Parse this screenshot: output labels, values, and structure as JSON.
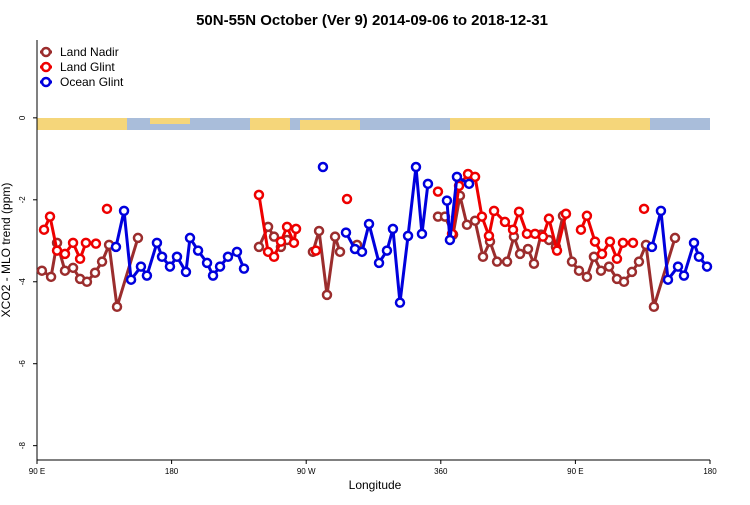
{
  "chart_data": {
    "type": "line",
    "title": "50N-55N October (Ver 9)   2014-09-06 to 2018-12-31",
    "xlabel": "Longitude",
    "ylabel": "XCO2 - MLO trend (ppm)",
    "xlim": [
      90,
      540
    ],
    "xticks": [
      {
        "value": 90,
        "label": "90 E"
      },
      180,
      {
        "value": 270,
        "label": "90 W"
      },
      360,
      {
        "value": 450,
        "label": "90 E"
      },
      {
        "value": 540,
        "label": "180"
      }
    ],
    "ylim": [
      -8.35,
      1.9
    ],
    "yticks": [
      0,
      -2,
      -4,
      -6,
      -8
    ],
    "legend": "top-left",
    "series": [
      {
        "name": "Land Nadir",
        "color": "#9b2d2d",
        "x": [
          93.3,
          99.4,
          103.4,
          108.7,
          114.1,
          118.8,
          123.4,
          128.8,
          133.5,
          138.2,
          143.5,
          157.5,
          null,
          238.4,
          244.5,
          248.5,
          253.1,
          257.2,
          null,
          274.5,
          278.6,
          283.9,
          289.3,
          292.6,
          null,
          304,
          null,
          358.1,
          362.8,
          368.2,
          372.8,
          377.5,
          382.9,
          388.2,
          392.9,
          397.6,
          404.3,
          408.9,
          413,
          418.3,
          422.3,
          427,
          432.3,
          437,
          441.7,
          447.7,
          452.4,
          457.7,
          462.4,
          467.1,
          472.5,
          477.8,
          482.5,
          487.8,
          492.5,
          497.2,
          502.5,
          516.6
        ],
        "values": [
          -3.73,
          -3.88,
          -3.05,
          -3.73,
          -3.66,
          -3.93,
          -4.0,
          -3.78,
          -3.51,
          -3.1,
          -4.61,
          -2.93,
          null,
          -3.15,
          -2.66,
          -2.9,
          -3.15,
          -2.98,
          null,
          -3.27,
          -2.76,
          -4.32,
          -2.9,
          -3.27,
          null,
          -3.1,
          null,
          -2.41,
          -2.41,
          -2.85,
          -1.9,
          -2.61,
          -2.51,
          -3.39,
          -3.02,
          -3.51,
          -3.51,
          -2.9,
          -3.32,
          -3.2,
          -3.56,
          -2.85,
          -2.98,
          -3.15,
          -2.39,
          -3.51,
          -3.73,
          -3.88,
          -3.39,
          -3.73,
          -3.63,
          -3.93,
          -4.0,
          -3.76,
          -3.51,
          -3.1,
          -4.61,
          -2.93
        ]
      },
      {
        "name": "Land Glint",
        "color": "#ee0000",
        "x": [
          94.7,
          98.7,
          103.4,
          108.7,
          114.1,
          118.8,
          122.7,
          129.4,
          null,
          136.8,
          null,
          238.4,
          244.5,
          248.5,
          253.1,
          257.2,
          261.8,
          263.2,
          null,
          276.5,
          null,
          297.3,
          null,
          358.1,
          null,
          367.5,
          372.2,
          378.2,
          382.9,
          387.5,
          392.2,
          395.6,
          402.9,
          408.3,
          412.3,
          417.6,
          423,
          428.3,
          432.3,
          437.7,
          443.7,
          null,
          453.7,
          457.7,
          463.1,
          467.8,
          473.1,
          477.8,
          481.8,
          488.5,
          null,
          495.9
        ],
        "values": [
          -2.73,
          -2.41,
          -3.24,
          -3.32,
          -3.05,
          -3.44,
          -3.05,
          -3.07,
          null,
          -2.22,
          null,
          -1.88,
          -3.27,
          -3.39,
          -3.02,
          -2.66,
          -3.05,
          -2.71,
          null,
          -3.24,
          null,
          -1.98,
          null,
          -1.8,
          null,
          -2.83,
          -1.66,
          -1.37,
          -1.44,
          -2.41,
          -2.88,
          -2.27,
          -2.54,
          -2.73,
          -2.29,
          -2.83,
          -2.83,
          -2.9,
          -2.46,
          -3.24,
          -2.34,
          null,
          -2.73,
          -2.39,
          -3.02,
          -3.32,
          -3.02,
          -3.44,
          -3.05,
          -3.05,
          null,
          -2.22
        ]
      },
      {
        "name": "Ocean Glint",
        "color": "#0000dd",
        "x": [
          142.8,
          148.2,
          152.9,
          159.5,
          163.5,
          170.2,
          173.6,
          178.9,
          183.6,
          189.6,
          192.3,
          197.7,
          203.7,
          207.7,
          212.4,
          217.7,
          223.7,
          228.4,
          null,
          281.2,
          null,
          296.6,
          302.6,
          307.3,
          312,
          318.7,
          324,
          328,
          332.7,
          338.1,
          343.4,
          347.4,
          351.4,
          null,
          364.1,
          366.1,
          370.8,
          378.9,
          null,
          501.2,
          507.2,
          511.9,
          518.6,
          522.6,
          529.3,
          532.6,
          538
        ],
        "values": [
          -3.15,
          -2.27,
          -3.95,
          -3.63,
          -3.85,
          -3.05,
          -3.39,
          -3.63,
          -3.39,
          -3.76,
          -2.93,
          -3.24,
          -3.54,
          -3.85,
          -3.63,
          -3.39,
          -3.27,
          -3.68,
          null,
          -1.2,
          null,
          -2.8,
          -3.2,
          -3.27,
          -2.59,
          -3.54,
          -3.24,
          -2.71,
          -4.51,
          -2.88,
          -1.2,
          -2.83,
          -1.61,
          null,
          -2.02,
          -2.98,
          -1.44,
          -1.61,
          null,
          -3.15,
          -2.27,
          -3.95,
          -3.63,
          -3.85,
          -3.05,
          -3.39,
          -3.63
        ]
      }
    ]
  }
}
